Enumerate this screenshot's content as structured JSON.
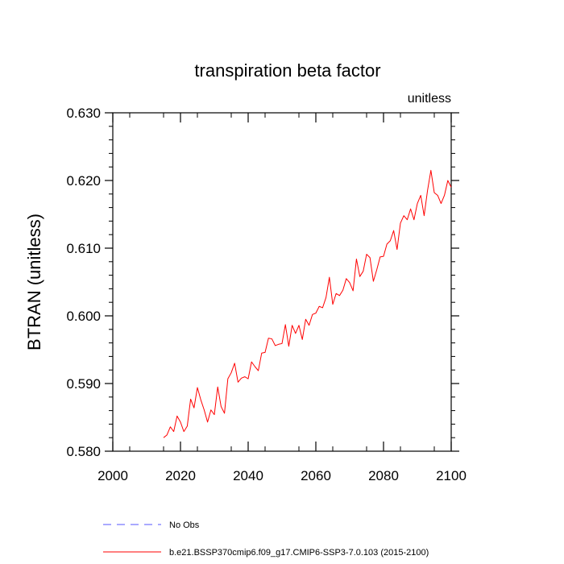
{
  "chart_data": {
    "type": "line",
    "title": "transpiration beta factor",
    "units_label": "unitless",
    "ylabel": "BTRAN  (unitless)",
    "xlabel": "",
    "xlim": [
      2000,
      2100
    ],
    "ylim": [
      0.58,
      0.63
    ],
    "x_ticks": [
      2000,
      2020,
      2040,
      2060,
      2080,
      2100
    ],
    "x_tick_labels": [
      "2000",
      "2020",
      "2040",
      "2060",
      "2080",
      "2100"
    ],
    "y_ticks": [
      0.58,
      0.59,
      0.6,
      0.61,
      0.62,
      0.63
    ],
    "y_tick_labels": [
      "0.580",
      "0.590",
      "0.600",
      "0.610",
      "0.620",
      "0.630"
    ],
    "grid": false,
    "legend_position": "bottom",
    "legend": [
      {
        "label": "No Obs",
        "color": "#5555ff",
        "dash": true
      },
      {
        "label": "b.e21.BSSP370cmip6.f09_g17.CMIP6-SSP3-7.0.103 (2015-2100)",
        "color": "#ff0000",
        "dash": false
      }
    ],
    "series": [
      {
        "color": "#ff0000",
        "x": [
          2015,
          2016,
          2017,
          2018,
          2019,
          2020,
          2021,
          2022,
          2023,
          2024,
          2025,
          2026,
          2027,
          2028,
          2029,
          2030,
          2031,
          2032,
          2033,
          2034,
          2035,
          2036,
          2037,
          2038,
          2039,
          2040,
          2041,
          2042,
          2043,
          2044,
          2045,
          2046,
          2047,
          2048,
          2049,
          2050,
          2051,
          2052,
          2053,
          2054,
          2055,
          2056,
          2057,
          2058,
          2059,
          2060,
          2061,
          2062,
          2063,
          2064,
          2065,
          2066,
          2067,
          2068,
          2069,
          2070,
          2071,
          2072,
          2073,
          2074,
          2075,
          2076,
          2077,
          2078,
          2079,
          2080,
          2081,
          2082,
          2083,
          2084,
          2085,
          2086,
          2087,
          2088,
          2089,
          2090,
          2091,
          2092,
          2093,
          2094,
          2095,
          2096,
          2097,
          2098,
          2099,
          2100
        ],
        "y": [
          0.582,
          0.5824,
          0.5836,
          0.5829,
          0.5852,
          0.5843,
          0.5829,
          0.5837,
          0.5877,
          0.5864,
          0.5894,
          0.5876,
          0.5861,
          0.5843,
          0.5861,
          0.5854,
          0.5895,
          0.5866,
          0.5856,
          0.5907,
          0.5916,
          0.593,
          0.5902,
          0.5908,
          0.591,
          0.5907,
          0.5932,
          0.5925,
          0.5919,
          0.5945,
          0.5946,
          0.5967,
          0.5966,
          0.5956,
          0.5958,
          0.5959,
          0.5987,
          0.5955,
          0.5986,
          0.5974,
          0.5986,
          0.5965,
          0.5995,
          0.5986,
          0.6002,
          0.6004,
          0.6014,
          0.6012,
          0.6027,
          0.6057,
          0.6017,
          0.6033,
          0.603,
          0.6038,
          0.6055,
          0.6049,
          0.6037,
          0.6084,
          0.6058,
          0.6066,
          0.6091,
          0.6086,
          0.6051,
          0.6068,
          0.6087,
          0.6088,
          0.6106,
          0.6111,
          0.6126,
          0.6098,
          0.6137,
          0.6148,
          0.6142,
          0.6158,
          0.6142,
          0.6166,
          0.6178,
          0.6148,
          0.6185,
          0.6215,
          0.6182,
          0.6178,
          0.6166,
          0.6178,
          0.62,
          0.619
        ]
      }
    ]
  }
}
